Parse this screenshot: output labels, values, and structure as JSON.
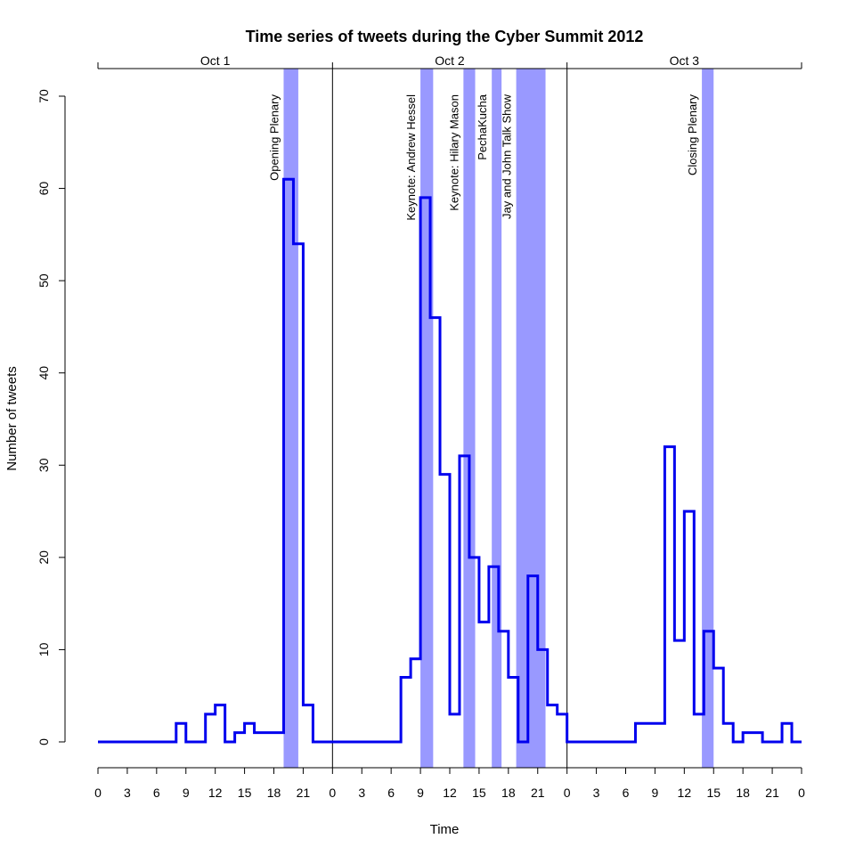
{
  "chart_data": {
    "type": "line",
    "step": true,
    "title": "Time series of tweets during the Cyber Summit 2012",
    "xlabel": "Time",
    "ylabel": "Number of tweets",
    "x_unit": "hours from Oct 1 00:00",
    "xlim": [
      0,
      72
    ],
    "ylim": [
      0,
      70
    ],
    "y_ticks": [
      0,
      10,
      20,
      30,
      40,
      50,
      60,
      70
    ],
    "x_ticks": [
      {
        "at": 0,
        "label": "0"
      },
      {
        "at": 3,
        "label": "3"
      },
      {
        "at": 6,
        "label": "6"
      },
      {
        "at": 9,
        "label": "9"
      },
      {
        "at": 12,
        "label": "12"
      },
      {
        "at": 15,
        "label": "15"
      },
      {
        "at": 18,
        "label": "18"
      },
      {
        "at": 21,
        "label": "21"
      },
      {
        "at": 24,
        "label": "0"
      },
      {
        "at": 27,
        "label": "3"
      },
      {
        "at": 30,
        "label": "6"
      },
      {
        "at": 33,
        "label": "9"
      },
      {
        "at": 36,
        "label": "12"
      },
      {
        "at": 39,
        "label": "15"
      },
      {
        "at": 42,
        "label": "18"
      },
      {
        "at": 45,
        "label": "21"
      },
      {
        "at": 48,
        "label": "0"
      },
      {
        "at": 51,
        "label": "3"
      },
      {
        "at": 54,
        "label": "6"
      },
      {
        "at": 57,
        "label": "9"
      },
      {
        "at": 60,
        "label": "12"
      },
      {
        "at": 63,
        "label": "15"
      },
      {
        "at": 66,
        "label": "18"
      },
      {
        "at": 69,
        "label": "21"
      },
      {
        "at": 72,
        "label": "0"
      }
    ],
    "days": [
      {
        "label": "Oct 1",
        "start": 0,
        "end": 24
      },
      {
        "label": "Oct 2",
        "start": 24,
        "end": 48
      },
      {
        "label": "Oct 3",
        "start": 48,
        "end": 72
      }
    ],
    "events": [
      {
        "label": "Opening Plenary",
        "start": 19.0,
        "end": 20.5
      },
      {
        "label": "Keynote: Andrew Hessel",
        "start": 33.0,
        "end": 34.3
      },
      {
        "label": "Keynote: Hilary Mason",
        "start": 37.4,
        "end": 38.6
      },
      {
        "label": "PechaKucha",
        "start": 40.3,
        "end": 41.3
      },
      {
        "label": "Jay and John Talk Show",
        "start": 42.8,
        "end": 45.8
      },
      {
        "label": "Closing Plenary",
        "start": 61.8,
        "end": 63.0
      }
    ],
    "series": [
      {
        "x": [
          0,
          8,
          9,
          11,
          12,
          13,
          14,
          15,
          16,
          19,
          20,
          21,
          22,
          24,
          31,
          32,
          33,
          34,
          35,
          36,
          37,
          38,
          39,
          40,
          41,
          42,
          43,
          44,
          45,
          46,
          47,
          48,
          55,
          57,
          58,
          59,
          60,
          61,
          62,
          63,
          64,
          65,
          66,
          67,
          68,
          69,
          70,
          71
        ],
        "y": [
          0,
          2,
          0,
          3,
          4,
          0,
          1,
          2,
          1,
          61,
          54,
          4,
          0,
          0,
          7,
          9,
          59,
          46,
          29,
          3,
          31,
          20,
          13,
          19,
          12,
          7,
          0,
          18,
          10,
          4,
          3,
          0,
          2,
          2,
          32,
          11,
          25,
          3,
          12,
          8,
          2,
          0,
          1,
          1,
          0,
          0,
          2,
          0
        ],
        "x_end": 72,
        "color": "#0000ee"
      }
    ]
  }
}
